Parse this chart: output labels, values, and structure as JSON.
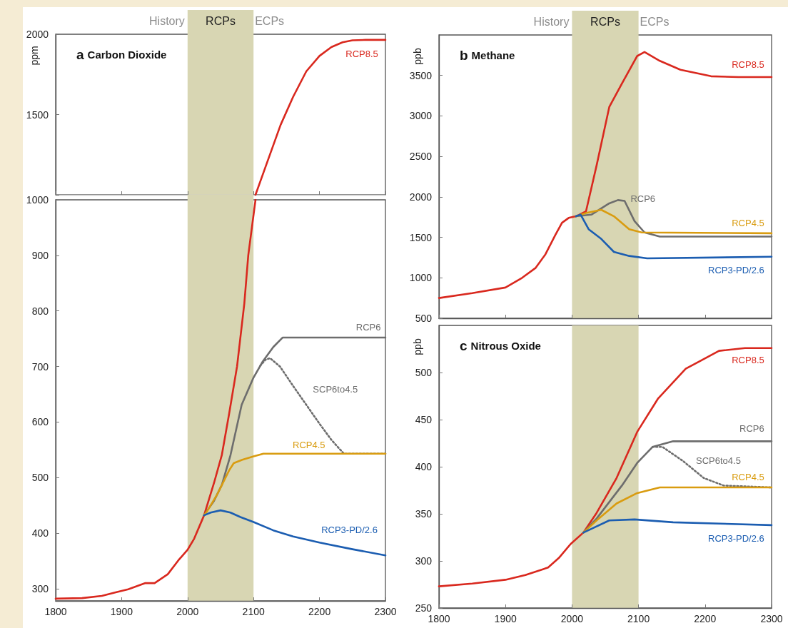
{
  "chart_data": [
    {
      "type": "line",
      "title": "a Carbon Dioxide",
      "ylabel": "ppm",
      "xlim": [
        1800,
        2300
      ],
      "xticks": [
        1800,
        1900,
        2000,
        2100,
        2200,
        2300
      ],
      "ylim": [
        1000,
        2000
      ],
      "yticks": [
        {
          "value": 1000,
          "label": null
        },
        1500,
        2000
      ],
      "tick_labels": "y",
      "grid": false,
      "legend": false,
      "marker": "none",
      "annotations": [
        "History",
        "ECPs"
      ],
      "bands": [
        {
          "axis": "x",
          "from": 2000,
          "to": 2100,
          "label": "RCPs",
          "color": "#d8d6b3"
        }
      ],
      "series": [
        {
          "name": "RCP8.5",
          "color": "#d9281e",
          "x": [
            2103,
            2120,
            2141,
            2160,
            2180,
            2200,
            2218,
            2235,
            2250,
            2270,
            2300
          ],
          "values": [
            1000,
            1195,
            1435,
            1610,
            1769,
            1865,
            1920,
            1950,
            1962,
            1965,
            1965
          ]
        }
      ]
    },
    {
      "type": "line",
      "xlim": [
        1800,
        2300
      ],
      "xticks": [
        1800,
        1900,
        2000,
        2100,
        2200,
        2300
      ],
      "ylim": [
        278,
        1000
      ],
      "yticks": [
        300,
        400,
        500,
        600,
        700,
        800,
        900,
        1000
      ],
      "grid": false,
      "legend": false,
      "marker": "none",
      "bands": [
        {
          "axis": "x",
          "from": 2000,
          "to": 2100,
          "label": null,
          "color": "#d8d6b3"
        }
      ],
      "series": [
        {
          "color": "#d9281e",
          "x": [
            1800,
            1840,
            1870,
            1890,
            1910,
            1936,
            1950,
            1960,
            1970,
            1986,
            2000,
            2010,
            2025,
            2040,
            2052,
            2063,
            2075,
            2086,
            2092,
            2103
          ],
          "values": [
            282,
            283,
            287,
            293,
            299,
            310,
            310,
            318,
            326,
            351,
            370,
            390,
            432,
            490,
            541,
            615,
            700,
            813,
            900,
            1000
          ]
        },
        {
          "name": "RCP6",
          "color": "#6d6d6d",
          "x": [
            2025,
            2030,
            2040,
            2052,
            2065,
            2082,
            2100,
            2114,
            2130,
            2144,
            2300
          ],
          "values": [
            432,
            441,
            458,
            487,
            540,
            631,
            680,
            709,
            735,
            752,
            752
          ]
        },
        {
          "name": "SCP6to4.5",
          "color": "#6d6d6d",
          "line_style": "dotted",
          "x": [
            2110,
            2118,
            2125,
            2140,
            2160,
            2180,
            2200,
            2218,
            2237,
            2300
          ],
          "values": [
            701,
            712,
            715,
            700,
            665,
            631,
            597,
            568,
            543,
            543
          ]
        },
        {
          "name": "RCP4.5",
          "color": "#d99c10",
          "x": [
            2025,
            2030,
            2045,
            2063,
            2070,
            2083,
            2100,
            2115,
            2300
          ],
          "values": [
            432,
            440,
            470,
            513,
            526,
            532,
            538,
            543,
            543
          ]
        },
        {
          "name": "RCP3-PD/2.6",
          "color": "#1b5db1",
          "x": [
            2025,
            2035,
            2050,
            2065,
            2080,
            2100,
            2130,
            2160,
            2200,
            2250,
            2300
          ],
          "values": [
            432,
            437,
            441,
            437,
            429,
            420,
            405,
            394,
            383,
            371,
            360
          ]
        }
      ]
    },
    {
      "type": "line",
      "title": "b Methane",
      "ylabel": "ppb",
      "xlim": [
        1800,
        2300
      ],
      "xticks": [
        1800,
        1900,
        2000,
        2100,
        2200,
        2300
      ],
      "ylim": [
        500,
        4000
      ],
      "yticks": [
        500,
        1000,
        1500,
        2000,
        2500,
        3000,
        3500
      ],
      "tick_labels": "y",
      "grid": false,
      "legend": false,
      "marker": "none",
      "annotations": [
        "History",
        "ECPs"
      ],
      "bands": [
        {
          "axis": "x",
          "from": 2000,
          "to": 2100,
          "label": "RCPs",
          "color": "#d8d6b3"
        }
      ],
      "series": [
        {
          "name": "RCP8.5",
          "color": "#d9281e",
          "x": [
            1800,
            1850,
            1900,
            1925,
            1945,
            1960,
            1975,
            1985,
            1995,
            2006,
            2021,
            2037,
            2056,
            2075,
            2098,
            2109,
            2132,
            2163,
            2209,
            2250,
            2300
          ],
          "values": [
            750,
            810,
            880,
            1000,
            1120,
            1290,
            1530,
            1680,
            1740,
            1760,
            1820,
            2390,
            3110,
            3400,
            3740,
            3790,
            3680,
            3570,
            3490,
            3480,
            3480
          ]
        },
        {
          "name": "RCP6",
          "color": "#6d6d6d",
          "x": [
            2006,
            2029,
            2056,
            2069,
            2079,
            2094,
            2109,
            2132,
            2300
          ],
          "values": [
            1760,
            1780,
            1920,
            1960,
            1950,
            1700,
            1560,
            1510,
            1510
          ]
        },
        {
          "name": "RCP4.5",
          "color": "#d99c10",
          "x": [
            2006,
            2021,
            2044,
            2063,
            2086,
            2105,
            2300
          ],
          "values": [
            1760,
            1800,
            1840,
            1760,
            1600,
            1560,
            1550
          ]
        },
        {
          "name": "RCP3-PD/2.6",
          "color": "#1b5db1",
          "x": [
            2006,
            2013,
            2025,
            2044,
            2063,
            2086,
            2113,
            2300
          ],
          "values": [
            1760,
            1780,
            1600,
            1480,
            1320,
            1270,
            1240,
            1260
          ]
        }
      ]
    },
    {
      "type": "line",
      "title": "c Nitrous Oxide",
      "ylabel": "ppb",
      "xlim": [
        1800,
        2300
      ],
      "xticks": [
        1800,
        1900,
        2000,
        2100,
        2200,
        2300
      ],
      "ylim": [
        250,
        550
      ],
      "yticks": [
        250,
        300,
        350,
        400,
        450,
        500
      ],
      "grid": false,
      "legend": false,
      "marker": "none",
      "bands": [
        {
          "axis": "x",
          "from": 2000,
          "to": 2100,
          "label": null,
          "color": "#d8d6b3"
        }
      ],
      "series": [
        {
          "name": "RCP8.5",
          "color": "#d9281e",
          "x": [
            1800,
            1850,
            1900,
            1930,
            1964,
            1980,
            1998,
            2017,
            2037,
            2067,
            2098,
            2129,
            2171,
            2221,
            2260,
            2300
          ],
          "values": [
            273,
            276,
            280,
            285,
            293,
            303,
            318,
            330,
            351,
            388,
            437,
            472,
            504,
            523,
            526,
            526
          ]
        },
        {
          "name": "RCP6",
          "color": "#6d6d6d",
          "x": [
            2017,
            2037,
            2075,
            2098,
            2121,
            2152,
            2300
          ],
          "values": [
            330,
            345,
            380,
            404,
            421,
            427,
            427
          ]
        },
        {
          "name": "SCP6to4.5",
          "color": "#6d6d6d",
          "line_style": "dotted",
          "x": [
            2121,
            2136,
            2167,
            2198,
            2228,
            2300
          ],
          "values": [
            421,
            421,
            406,
            388,
            380,
            378
          ]
        },
        {
          "name": "RCP4.5",
          "color": "#d99c10",
          "x": [
            2017,
            2037,
            2067,
            2098,
            2132,
            2300
          ],
          "values": [
            330,
            343,
            361,
            372,
            378,
            378
          ]
        },
        {
          "name": "RCP3-PD/2.6",
          "color": "#1b5db1",
          "x": [
            2017,
            2029,
            2056,
            2094,
            2152,
            2300
          ],
          "values": [
            330,
            334,
            343,
            344,
            341,
            338
          ]
        }
      ]
    }
  ]
}
